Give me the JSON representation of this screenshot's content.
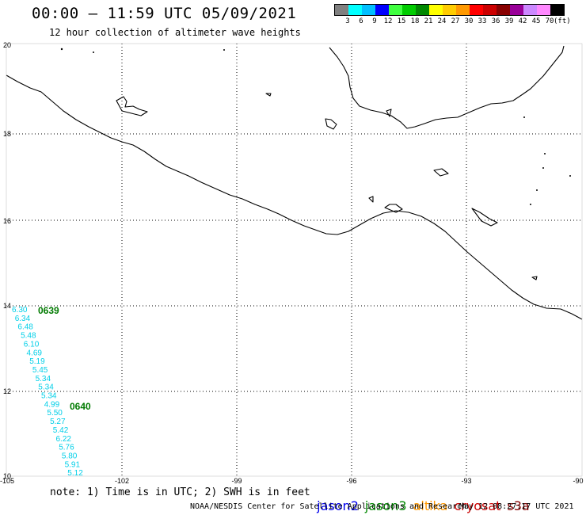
{
  "header": {
    "title": "00:00 – 11:59 UTC 05/09/2021",
    "subtitle": "12 hour collection of altimeter wave heights"
  },
  "legend": {
    "colors": [
      "#808080",
      "#00ffff",
      "#00bfff",
      "#0000ff",
      "#40ff40",
      "#00cc00",
      "#008800",
      "#ffff00",
      "#ffcc00",
      "#ff9900",
      "#ff0000",
      "#cc0000",
      "#880000",
      "#990099",
      "#cc88ff",
      "#ff88ff",
      "#000000"
    ],
    "labels": [
      "3",
      "6",
      "9",
      "12",
      "15",
      "18",
      "21",
      "24",
      "27",
      "30",
      "33",
      "36",
      "39",
      "42",
      "45",
      "70"
    ],
    "unit": "(ft)"
  },
  "axes": {
    "x_ticks": [
      "-105",
      "-102",
      "-99",
      "-96",
      "-93",
      "-90"
    ],
    "y_ticks": [
      "20",
      "18",
      "16",
      "14",
      "12",
      "10"
    ]
  },
  "passes": [
    {
      "time": "0639",
      "color": "#007a00"
    },
    {
      "time": "0640",
      "color": "#007a00"
    }
  ],
  "swh_track": {
    "color": "#00cfe8",
    "values": [
      "6.30",
      "6.34",
      "6.48",
      "5.48",
      "6.10",
      "4.69",
      "5.19",
      "5.45",
      "5.34",
      "5.34",
      "5.34",
      "4.99",
      "5.50",
      "5.27",
      "5.42",
      "6.22",
      "5.76",
      "5.80",
      "5.91",
      "5.12"
    ]
  },
  "footer": {
    "note": "note: 1) Time is in UTC; 2) SWH is in feet",
    "satellites": [
      {
        "name": "jason2",
        "color": "#0000ee"
      },
      {
        "name": "jason3",
        "color": "#008800"
      },
      {
        "name": "altika",
        "color": "#ff9900"
      },
      {
        "name": "cryosat",
        "color": "#cc0000"
      },
      {
        "name": "s3a",
        "color": "#880000"
      }
    ],
    "credit": "NOAA/NESDIS Center for Satellite Applications and Research",
    "timestamp": "May 12 08:27:17 UTC 2021"
  }
}
